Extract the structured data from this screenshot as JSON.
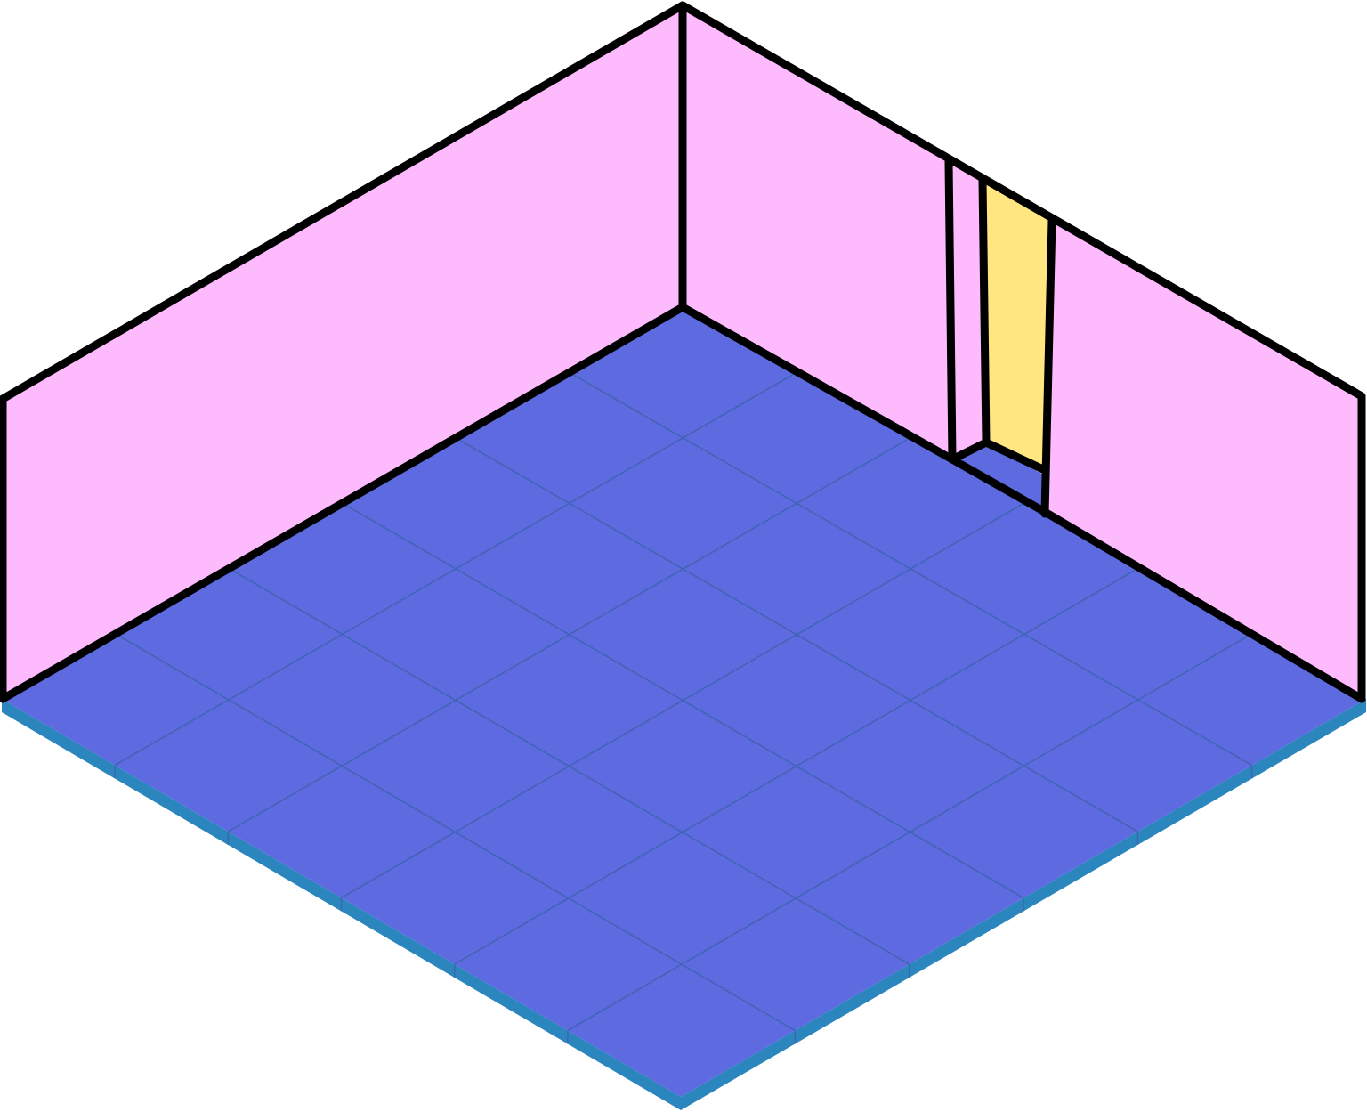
{
  "room": {
    "floor_tiles": {
      "rows": 6,
      "cols": 6
    },
    "colors": {
      "background": "#ffffff",
      "wall": "#fdbafd",
      "floor": "#5e6ae0",
      "floor_edge": "#2b86bd",
      "grid_line": "#3f64b3",
      "door": "#ffe680",
      "outline": "#000000"
    },
    "door": {
      "wall": "right",
      "description_icon": "door-icon"
    }
  }
}
